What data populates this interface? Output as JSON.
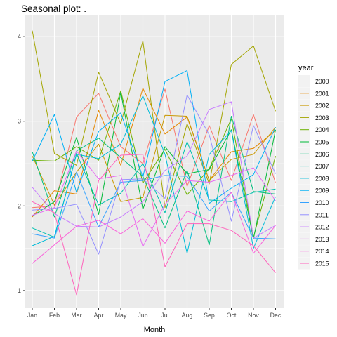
{
  "chart_data": {
    "type": "line",
    "title": "Seasonal plot: .",
    "xlabel": "Month",
    "ylabel": "",
    "categories": [
      "Jan",
      "Feb",
      "Mar",
      "Apr",
      "May",
      "Jun",
      "Jul",
      "Aug",
      "Sep",
      "Oct",
      "Nov",
      "Dec"
    ],
    "y_ticks": [
      1,
      2,
      3,
      4
    ],
    "ylim": [
      0.8,
      4.25
    ],
    "grid": true,
    "legend_title": "year",
    "legend_position": "right",
    "series": [
      {
        "name": "2000",
        "color": "#F8766D",
        "values": [
          1.98,
          2.0,
          3.05,
          3.33,
          2.7,
          2.5,
          3.38,
          2.23,
          2.95,
          2.3,
          3.08,
          2.27
        ]
      },
      {
        "name": "2001",
        "color": "#E58700",
        "values": [
          1.87,
          2.18,
          2.14,
          3.13,
          2.48,
          3.39,
          2.85,
          3.05,
          2.3,
          2.64,
          2.68,
          2.89
        ]
      },
      {
        "name": "2002",
        "color": "#C99800",
        "values": [
          2.59,
          2.01,
          2.4,
          2.73,
          2.05,
          2.1,
          3.07,
          3.06,
          2.3,
          2.55,
          2.61,
          2.93
        ]
      },
      {
        "name": "2003",
        "color": "#A3A500",
        "values": [
          4.07,
          2.62,
          2.48,
          3.58,
          2.97,
          3.95,
          1.98,
          2.97,
          2.26,
          3.67,
          3.89,
          3.12
        ]
      },
      {
        "name": "2004",
        "color": "#6BB100",
        "values": [
          2.54,
          2.53,
          2.7,
          2.54,
          3.36,
          2.27,
          2.67,
          2.13,
          2.44,
          3.03,
          1.63,
          2.59
        ]
      },
      {
        "name": "2005",
        "color": "#00BA38",
        "values": [
          1.88,
          2.05,
          2.81,
          1.9,
          3.34,
          1.96,
          2.7,
          2.38,
          2.43,
          2.9,
          1.61,
          2.9
        ]
      },
      {
        "name": "2006",
        "color": "#00BF7D",
        "values": [
          2.64,
          1.87,
          2.65,
          2.8,
          2.57,
          2.35,
          1.74,
          2.42,
          1.54,
          3.06,
          2.17,
          2.14
        ]
      },
      {
        "name": "2007",
        "color": "#00C0AF",
        "values": [
          1.74,
          1.63,
          2.62,
          2.01,
          2.15,
          2.5,
          1.92,
          2.76,
          2.07,
          2.05,
          2.16,
          2.2
        ]
      },
      {
        "name": "2008",
        "color": "#00BCD8",
        "values": [
          1.53,
          1.64,
          2.61,
          2.56,
          2.73,
          3.3,
          2.61,
          1.44,
          2.61,
          2.89,
          1.5,
          2.11
        ]
      },
      {
        "name": "2009",
        "color": "#00B0F6",
        "values": [
          2.53,
          3.08,
          2.16,
          2.88,
          3.1,
          2.34,
          3.47,
          3.6,
          2.03,
          2.21,
          2.37,
          2.93
        ]
      },
      {
        "name": "2010",
        "color": "#35A2FF",
        "values": [
          1.67,
          1.62,
          2.4,
          1.75,
          2.28,
          2.3,
          2.36,
          2.35,
          1.94,
          2.16,
          1.62,
          1.61
        ]
      },
      {
        "name": "2011",
        "color": "#9590FF",
        "values": [
          1.95,
          1.97,
          2.02,
          1.43,
          2.31,
          2.32,
          2.09,
          3.31,
          2.84,
          1.82,
          2.95,
          2.38
        ]
      },
      {
        "name": "2012",
        "color": "#C77CFF",
        "values": [
          2.22,
          1.91,
          1.76,
          1.75,
          1.87,
          2.05,
          2.42,
          2.59,
          3.14,
          3.23,
          1.62,
          1.77
        ]
      },
      {
        "name": "2013",
        "color": "#E76BF3",
        "values": [
          1.89,
          1.98,
          2.65,
          2.32,
          2.36,
          1.52,
          2.02,
          2.3,
          2.28,
          2.36,
          2.45,
          2.06
        ]
      },
      {
        "name": "2014",
        "color": "#FA62DB",
        "values": [
          1.32,
          1.54,
          1.76,
          1.83,
          1.67,
          1.85,
          1.56,
          1.94,
          1.82,
          2.16,
          1.44,
          1.77
        ]
      },
      {
        "name": "2015",
        "color": "#FF62BC",
        "values": [
          2.05,
          1.92,
          0.95,
          2.3,
          2.6,
          2.61,
          1.28,
          1.79,
          1.79,
          1.71,
          1.53,
          1.21
        ]
      }
    ]
  }
}
